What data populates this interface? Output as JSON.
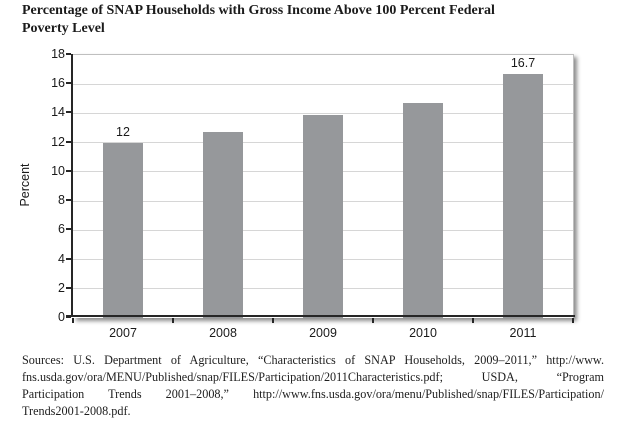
{
  "page": {
    "title_lines": [
      "Percentage of SNAP Households with Gross Income Above 100 Percent Federal",
      "Poverty Level"
    ]
  },
  "chart_data": {
    "type": "bar",
    "title": "Percentage of SNAP Households with Gross Income Above 100 Percent Federal Poverty Level",
    "categories": [
      "2007",
      "2008",
      "2009",
      "2010",
      "2011"
    ],
    "values": [
      12,
      12.7,
      13.9,
      14.7,
      16.7
    ],
    "bar_value_labels": [
      "12",
      "",
      "",
      "",
      "16.7"
    ],
    "xlabel": "",
    "ylabel": "Percent",
    "ylim": [
      0,
      18
    ],
    "ytick_step": 2,
    "grid": true,
    "legend": "none",
    "bar_color": "#96989b",
    "gridline_color": "#d6d6d6",
    "axis_color": "#262626",
    "label_color": "#1a1a1a"
  },
  "source_note": {
    "lines": [
      "Sources: U.S. Department of Agriculture, “Characteristics of SNAP Households, 2009–2011,” http://www.",
      "fns.usda.gov/ora/MENU/Published/snap/FILES/Participation/2011Characteristics.pdf; USDA, “Program",
      "Participation Trends 2001–2008,” http://www.fns.usda.gov/ora/menu/Published/snap/FILES/Participation/",
      "Trends2001-2008.pdf."
    ]
  }
}
